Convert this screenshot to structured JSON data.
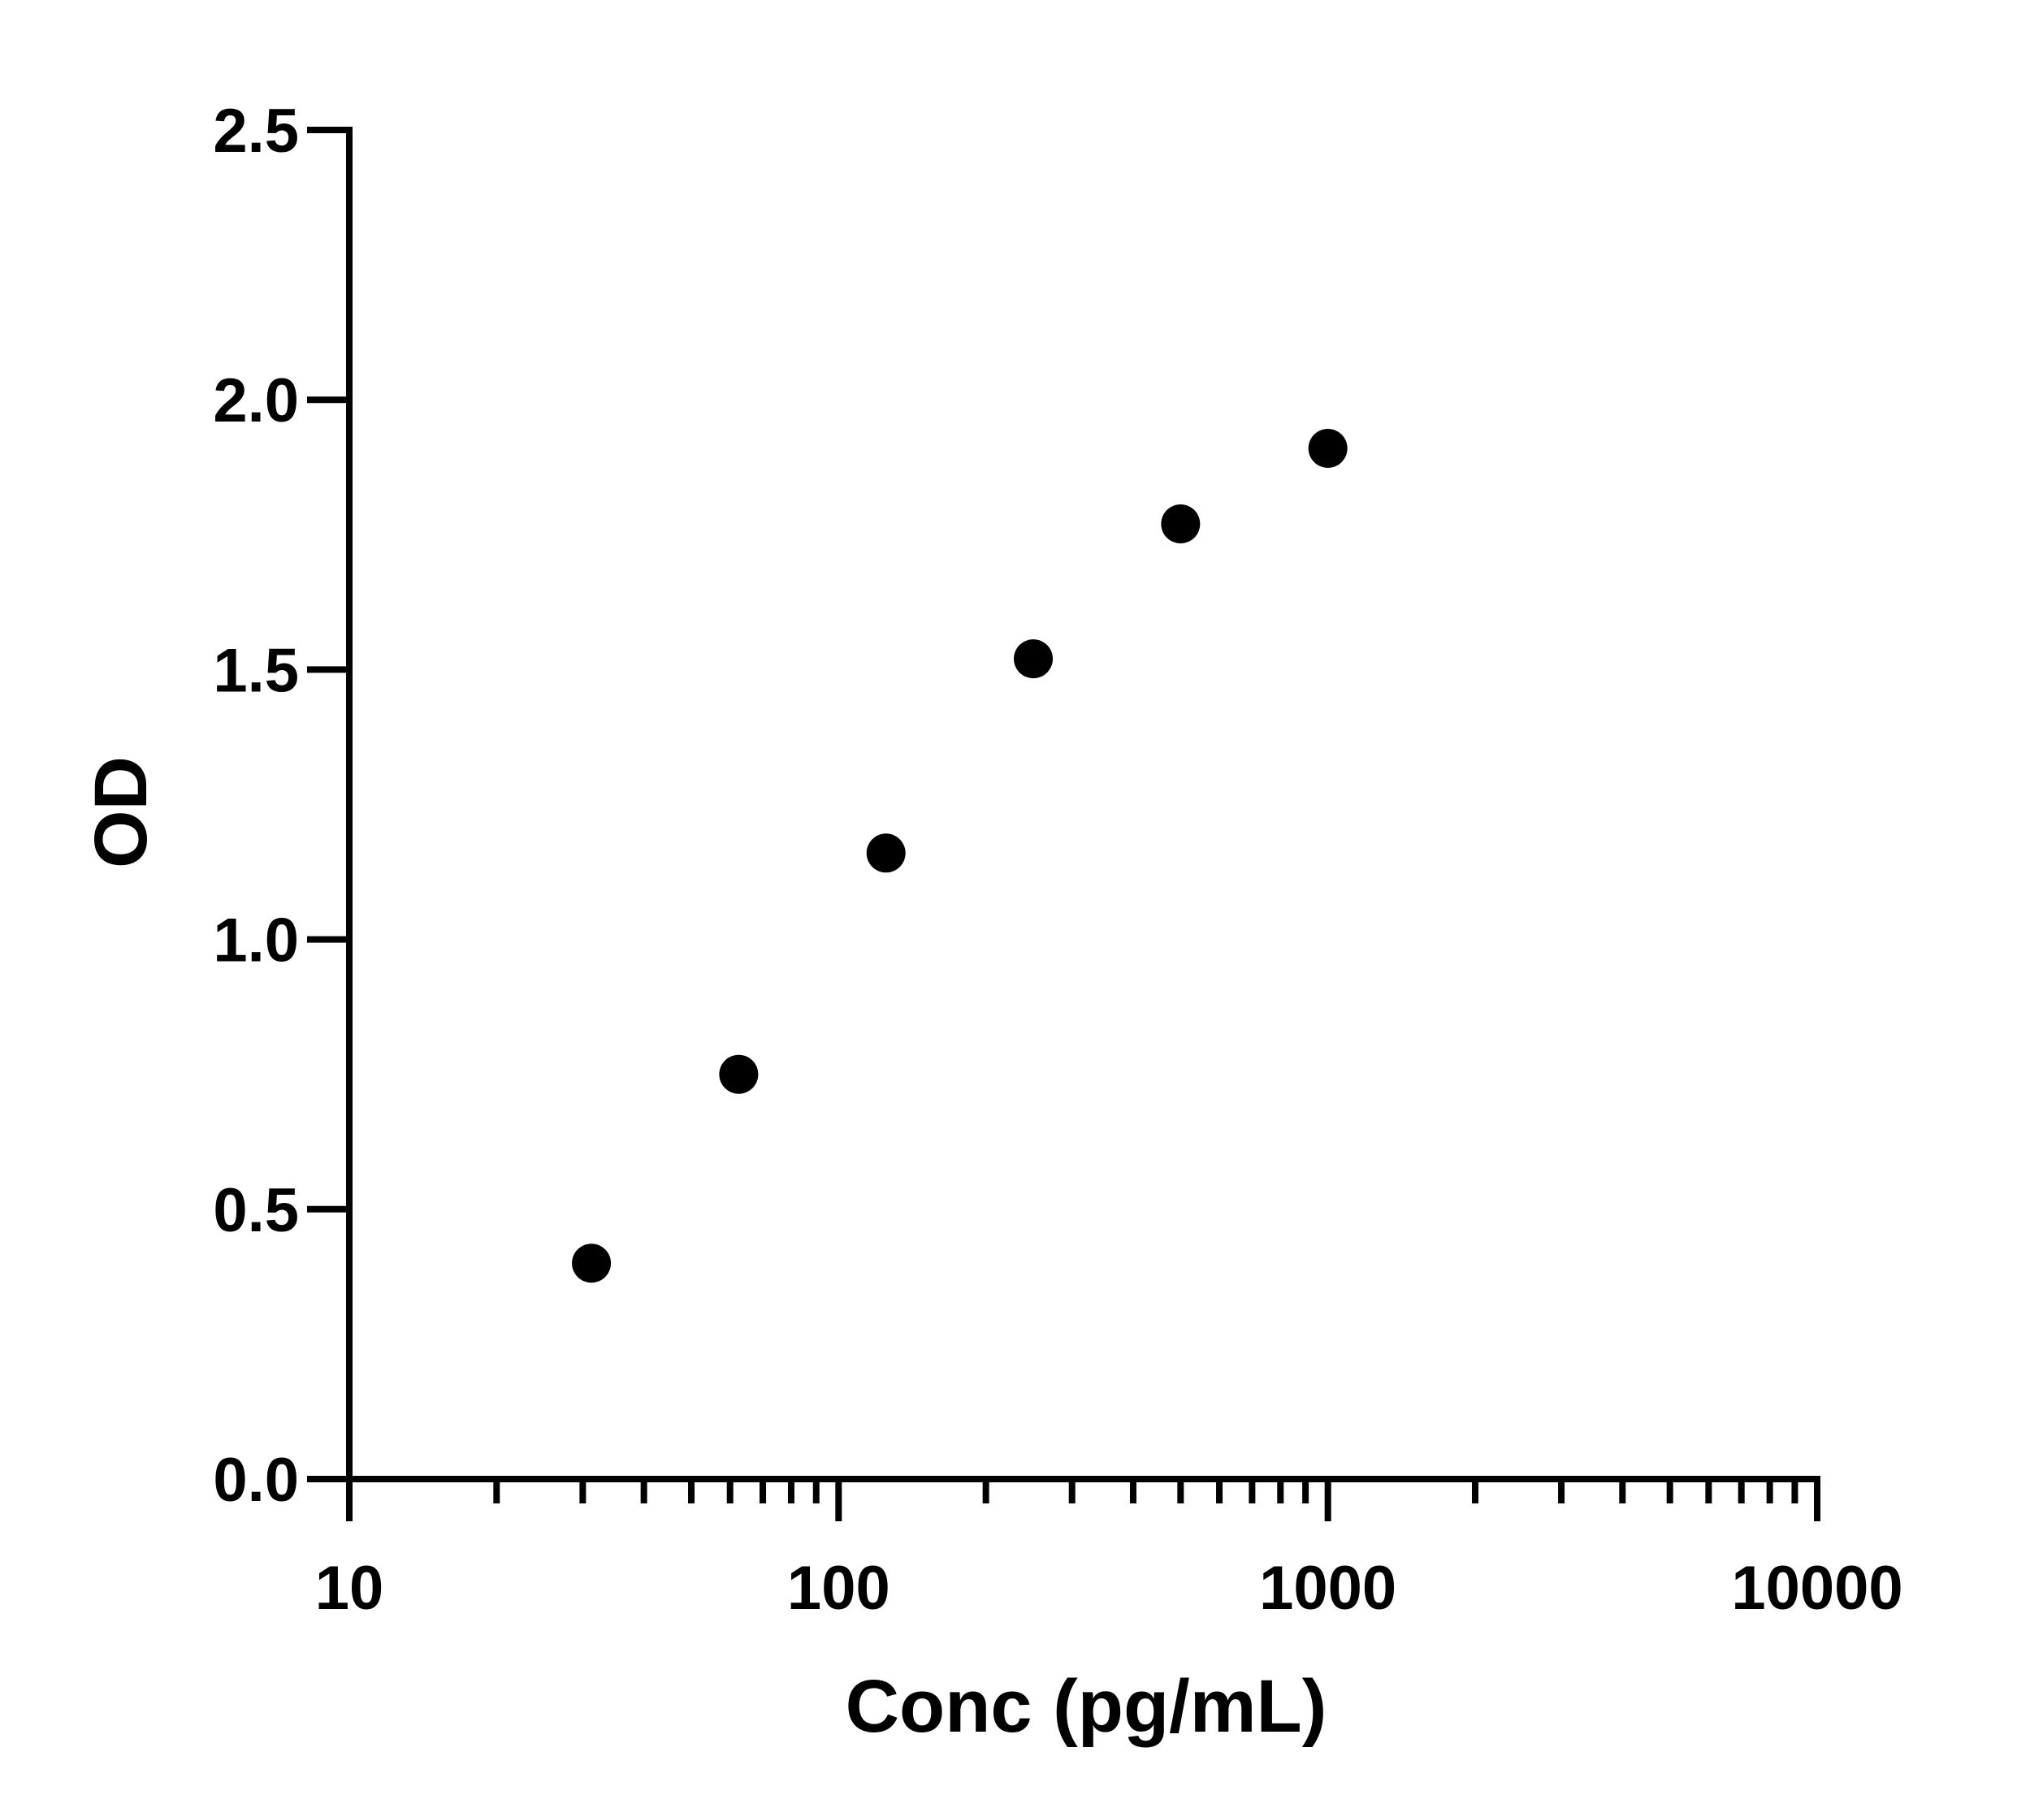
{
  "chart_data": {
    "type": "scatter",
    "title": "",
    "xlabel": "Conc (pg/mL)",
    "ylabel": "OD",
    "x_scale": "log",
    "xlim": [
      10,
      10000
    ],
    "ylim": [
      0,
      2.5
    ],
    "x_ticks": [
      "10",
      "100",
      "1000",
      "10000"
    ],
    "y_ticks": [
      "0.0",
      "0.5",
      "1.0",
      "1.5",
      "2.0",
      "2.5"
    ],
    "grid": false,
    "legend": "none",
    "marker_color": "#000000",
    "series": [
      {
        "x": [
          31.25,
          62.5,
          125,
          250,
          500,
          1000
        ],
        "y": [
          0.4,
          0.75,
          1.16,
          1.52,
          1.77,
          1.91
        ]
      }
    ]
  }
}
